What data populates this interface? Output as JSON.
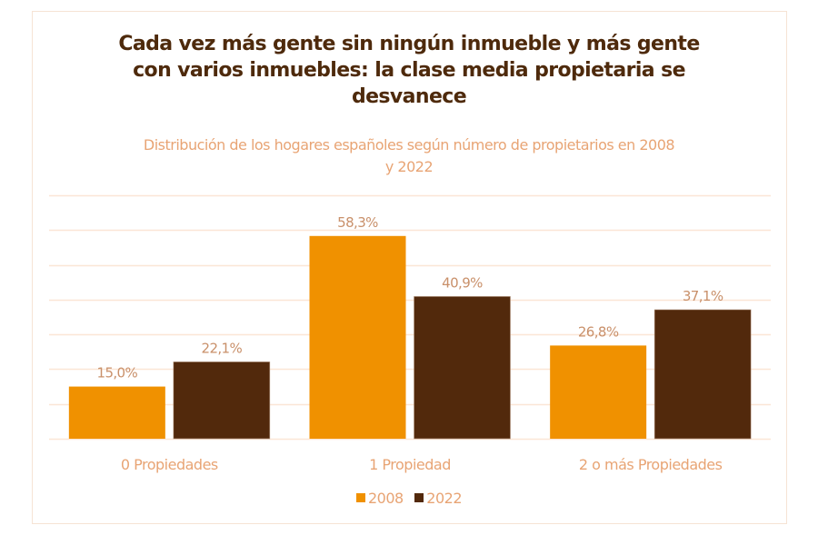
{
  "chart_data": {
    "type": "bar",
    "title_lines": [
      "Cada vez más gente sin ningún inmueble y más gente",
      "con varios inmuebles: la clase media propietaria se",
      "desvanece"
    ],
    "title": "Cada vez más gente sin ningún inmueble y más gente con varios inmuebles: la clase media propietaria se desvanece",
    "subtitle_lines": [
      "Distribución de los hogares españoles según número de propietarios en 2008",
      "y 2022"
    ],
    "subtitle": "Distribución de los hogares españoles según número de propietarios en 2008 y 2022",
    "xlabel": "",
    "ylabel": "",
    "categories": [
      "0 Propiedades",
      "1 Propiedad",
      "2 o más Propiedades"
    ],
    "series": [
      {
        "name": "2008",
        "color": "#f09100",
        "values": [
          15.0,
          58.3,
          26.8
        ],
        "labels": [
          "15,0%",
          "58,3%",
          "26,8%"
        ]
      },
      {
        "name": "2022",
        "color": "#52290c",
        "values": [
          22.1,
          40.9,
          37.1
        ],
        "labels": [
          "22,1%",
          "40,9%",
          "37,1%"
        ]
      }
    ],
    "ylim": [
      0,
      70
    ],
    "ytick_step": 10,
    "grid": true,
    "y_tick_labels_shown": false,
    "legend_position": "bottom"
  },
  "colors": {
    "title": "#4e2a0c",
    "subtitle": "#e8a474",
    "labels": "#c9906a",
    "gridline": "#fbe6d6",
    "frame": "#f6e3d4"
  }
}
